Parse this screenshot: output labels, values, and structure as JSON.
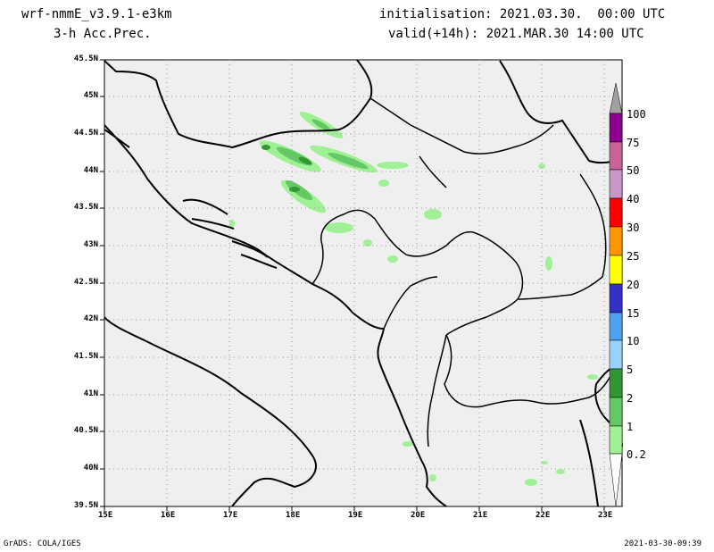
{
  "header": {
    "model": "wrf-nmmE_v3.9.1-e3km",
    "field": "3-h Acc.Prec.",
    "init": "initialisation: 2021.03.30.  00:00 UTC",
    "valid": "valid(+14h): 2021.MAR.30 14:00 UTC"
  },
  "footer": {
    "credit": "GrADS: COLA/IGES",
    "timestamp": "2021-03-30-09:39"
  },
  "map": {
    "lat_labels": [
      "45.5N",
      "45N",
      "44.5N",
      "44N",
      "43.5N",
      "43N",
      "42.5N",
      "42N",
      "41.5N",
      "41N",
      "40.5N",
      "40N",
      "39.5N"
    ],
    "lon_labels": [
      "15E",
      "16E",
      "17E",
      "18E",
      "19E",
      "20E",
      "21E",
      "22E",
      "23E"
    ],
    "land_color": "#efefef",
    "sea_color": "#efefef"
  },
  "legend": {
    "levels": [
      "100",
      "75",
      "50",
      "40",
      "30",
      "25",
      "20",
      "15",
      "10",
      "5",
      "2",
      "1",
      "0.2"
    ],
    "colors": [
      "#a0a0a0",
      "#8c008c",
      "#c86496",
      "#c896c8",
      "#ff0000",
      "#ff9600",
      "#ffff00",
      "#3232c8",
      "#50a0f0",
      "#96d2fa",
      "#329632",
      "#64c864",
      "#a0f096"
    ]
  }
}
